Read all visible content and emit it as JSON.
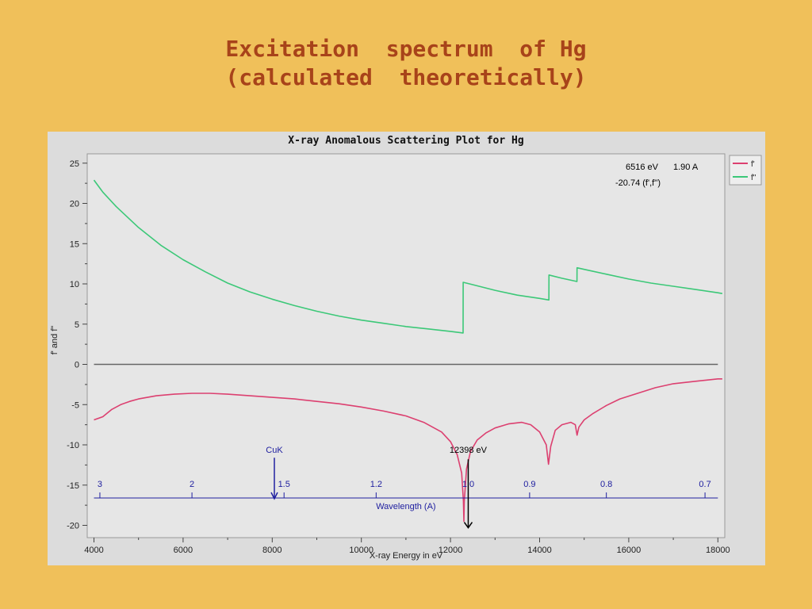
{
  "slide": {
    "title_line1": "Excitation  spectrum  of Hg",
    "title_line2": "(calculated  theoretically)"
  },
  "colors": {
    "background": "#f0c05a",
    "title": "#a8431a",
    "panel": "#dcdcdc",
    "plot_area": "#e6e6e6",
    "f_prime": "#dc4070",
    "f_double_prime": "#3cc878",
    "wavelength_axis": "#2020a0"
  },
  "chart_data": {
    "type": "line",
    "title": "X-ray Anomalous Scattering Plot for Hg",
    "xlabel": "X-ray Energy in eV",
    "ylabel": "f' and f\"",
    "xlim": [
      4000,
      18000
    ],
    "ylim": [
      -20,
      25
    ],
    "x_ticks": [
      "4000",
      "6000",
      "8000",
      "10000",
      "12000",
      "14000",
      "16000",
      "18000"
    ],
    "y_ticks": [
      "25",
      "20",
      "15",
      "10",
      "5",
      "0",
      "-5",
      "-10",
      "-15",
      "-20"
    ],
    "legend_position": "top-right",
    "series": [
      {
        "name": "f'",
        "color": "#dc4070",
        "points": [
          [
            4000,
            -6.9
          ],
          [
            4200,
            -6.5
          ],
          [
            4400,
            -5.6
          ],
          [
            4600,
            -5.0
          ],
          [
            4800,
            -4.6
          ],
          [
            5000,
            -4.3
          ],
          [
            5400,
            -3.9
          ],
          [
            5800,
            -3.7
          ],
          [
            6200,
            -3.6
          ],
          [
            6600,
            -3.6
          ],
          [
            7000,
            -3.7
          ],
          [
            7500,
            -3.9
          ],
          [
            8000,
            -4.1
          ],
          [
            8500,
            -4.3
          ],
          [
            9000,
            -4.6
          ],
          [
            9500,
            -4.9
          ],
          [
            10000,
            -5.3
          ],
          [
            10500,
            -5.8
          ],
          [
            11000,
            -6.4
          ],
          [
            11400,
            -7.2
          ],
          [
            11800,
            -8.4
          ],
          [
            12000,
            -9.6
          ],
          [
            12150,
            -11.2
          ],
          [
            12250,
            -13.5
          ],
          [
            12290,
            -17.0
          ],
          [
            12300,
            -19.5
          ],
          [
            12310,
            -17.0
          ],
          [
            12360,
            -13.0
          ],
          [
            12450,
            -10.8
          ],
          [
            12600,
            -9.4
          ],
          [
            12800,
            -8.5
          ],
          [
            13000,
            -7.9
          ],
          [
            13300,
            -7.4
          ],
          [
            13600,
            -7.2
          ],
          [
            13800,
            -7.5
          ],
          [
            14000,
            -8.4
          ],
          [
            14150,
            -10.0
          ],
          [
            14200,
            -12.4
          ],
          [
            14250,
            -10.2
          ],
          [
            14350,
            -8.2
          ],
          [
            14500,
            -7.5
          ],
          [
            14700,
            -7.2
          ],
          [
            14800,
            -7.5
          ],
          [
            14840,
            -8.8
          ],
          [
            14880,
            -7.8
          ],
          [
            15000,
            -6.9
          ],
          [
            15200,
            -6.1
          ],
          [
            15500,
            -5.1
          ],
          [
            15800,
            -4.3
          ],
          [
            16200,
            -3.6
          ],
          [
            16600,
            -2.9
          ],
          [
            17000,
            -2.4
          ],
          [
            17500,
            -2.1
          ],
          [
            18000,
            -1.8
          ],
          [
            18100,
            -1.8
          ]
        ]
      },
      {
        "name": "f\"",
        "color": "#3cc878",
        "points": [
          [
            4000,
            22.9
          ],
          [
            4200,
            21.4
          ],
          [
            4500,
            19.6
          ],
          [
            5000,
            17.0
          ],
          [
            5500,
            14.8
          ],
          [
            6000,
            13.0
          ],
          [
            6500,
            11.5
          ],
          [
            7000,
            10.1
          ],
          [
            7500,
            9.0
          ],
          [
            8000,
            8.1
          ],
          [
            8500,
            7.3
          ],
          [
            9000,
            6.6
          ],
          [
            9500,
            6.0
          ],
          [
            10000,
            5.5
          ],
          [
            10500,
            5.1
          ],
          [
            11000,
            4.7
          ],
          [
            11500,
            4.4
          ],
          [
            12000,
            4.1
          ],
          [
            12283,
            3.9
          ],
          [
            12284,
            10.2
          ],
          [
            12500,
            9.9
          ],
          [
            13000,
            9.2
          ],
          [
            13500,
            8.6
          ],
          [
            14000,
            8.2
          ],
          [
            14209,
            8.0
          ],
          [
            14210,
            11.1
          ],
          [
            14500,
            10.7
          ],
          [
            14838,
            10.3
          ],
          [
            14839,
            12.0
          ],
          [
            15000,
            11.8
          ],
          [
            15500,
            11.2
          ],
          [
            16000,
            10.6
          ],
          [
            16500,
            10.1
          ],
          [
            17000,
            9.7
          ],
          [
            17500,
            9.3
          ],
          [
            18000,
            8.9
          ],
          [
            18100,
            8.8
          ]
        ]
      }
    ],
    "readout": {
      "energy": "6516 eV",
      "wavelength": "1.90 A",
      "values": "-20.74 (f',f'')"
    },
    "annotations": {
      "cuk_label": "CuK",
      "cuk_energy": 8048,
      "edge_label": "12398 eV",
      "edge_energy": 12398
    },
    "wavelength_axis": {
      "label": "Wavelength (A)",
      "y_value": -16.6,
      "ticks": [
        {
          "label": "3",
          "value": 3.0
        },
        {
          "label": "2",
          "value": 2.0
        },
        {
          "label": "1.5",
          "value": 1.5
        },
        {
          "label": "1.2",
          "value": 1.2
        },
        {
          "label": "1.0",
          "value": 1.0
        },
        {
          "label": "0.9",
          "value": 0.9
        },
        {
          "label": "0.8",
          "value": 0.8
        },
        {
          "label": "0.7",
          "value": 0.7
        }
      ]
    }
  }
}
